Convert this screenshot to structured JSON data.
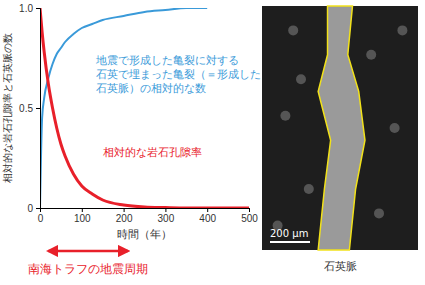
{
  "chart_data": {
    "type": "line",
    "x_label": "時間（年）",
    "y_label": "相対的な岩石孔隙率と石英脈の数",
    "x": [
      0,
      5,
      10,
      20,
      30,
      40,
      50,
      60,
      80,
      100,
      125,
      150,
      200,
      250,
      300,
      350,
      400,
      450,
      500
    ],
    "series": [
      {
        "name": "地震で形成した亀裂に対する\n石英で埋まった亀裂（＝形成した\n石英脈）の相対的な数",
        "color": "#3a9ad9",
        "values": [
          0,
          0.45,
          0.55,
          0.65,
          0.72,
          0.77,
          0.8,
          0.83,
          0.87,
          0.9,
          0.92,
          0.94,
          0.96,
          0.98,
          0.99,
          1.0,
          1.0,
          null,
          null
        ]
      },
      {
        "name": "相対的な岩石孔隙率",
        "color": "#e8202a",
        "values": [
          1.0,
          0.88,
          0.78,
          0.62,
          0.5,
          0.4,
          0.32,
          0.26,
          0.17,
          0.11,
          0.07,
          0.04,
          0.015,
          0.005,
          0.002,
          0,
          0,
          0,
          0
        ]
      }
    ],
    "xlim": [
      0,
      500
    ],
    "xticks": [
      0,
      100,
      200,
      300,
      400,
      500
    ],
    "ylim": [
      0,
      1
    ],
    "yticks": [
      0,
      0.5,
      {
        "value": 1,
        "label": "1.0"
      }
    ],
    "grid": false,
    "annotations": [
      {
        "text": "南海トラフの地震周期",
        "x_range": [
          20,
          210
        ],
        "color": "#e8202a"
      },
      {
        "text": "石英脈"
      },
      {
        "text": "200 μm"
      }
    ]
  }
}
